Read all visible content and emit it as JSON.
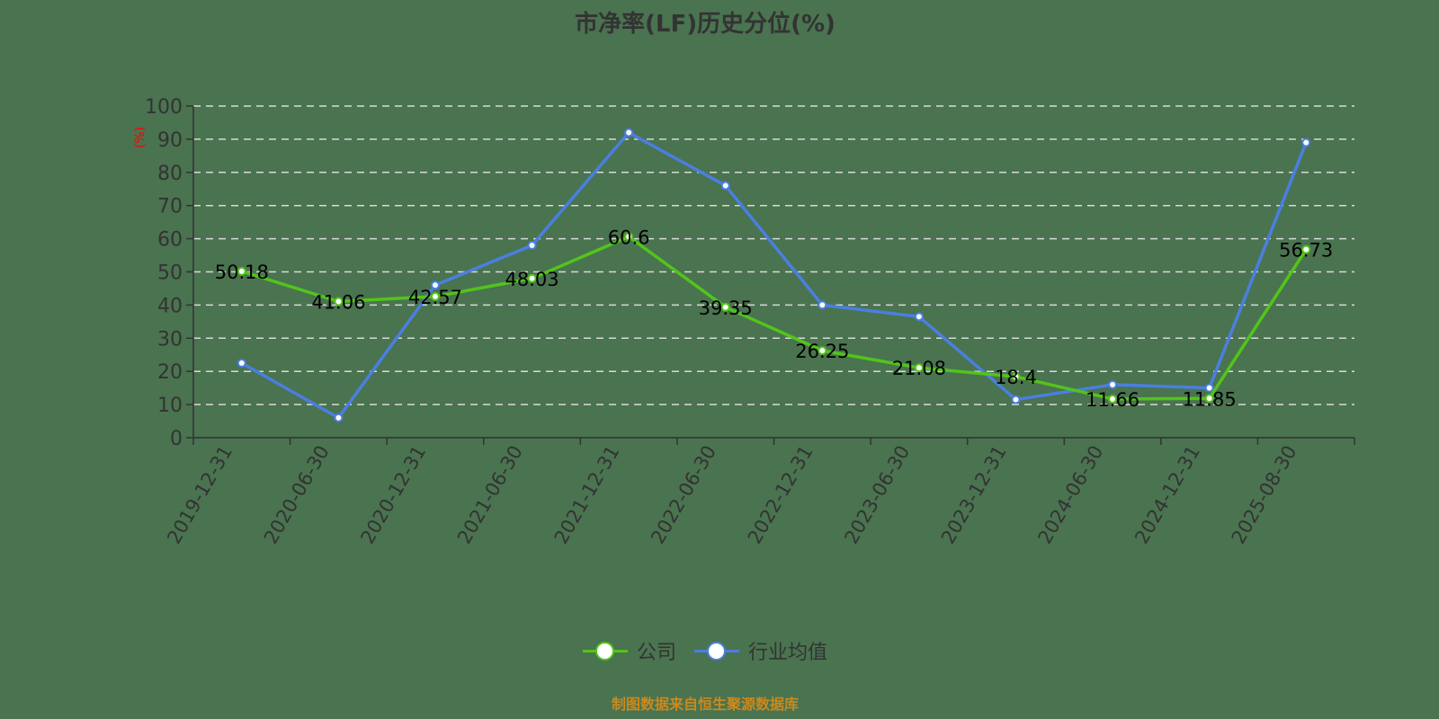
{
  "title": "市净率(LF)历史分位(%)",
  "footer": "制图数据来自恒生聚源数据库",
  "legend": {
    "company": "公司",
    "industry": "行业均值"
  },
  "colors": {
    "background": "#4a7350",
    "company": "#52c41a",
    "industry": "#4a7fe0",
    "axis": "#333333",
    "grid": "#d9d9d9",
    "ylabel": "#ff0000",
    "footer": "#c98a1e"
  },
  "chart_data": {
    "type": "line",
    "title": "市净率(LF)历史分位(%)",
    "xlabel": "",
    "ylabel": "(%)",
    "ylim": [
      0,
      100
    ],
    "yticks": [
      0,
      10,
      20,
      30,
      40,
      50,
      60,
      70,
      80,
      90,
      100
    ],
    "grid": true,
    "legend_position": "bottom",
    "categories": [
      "2019-12-31",
      "2020-06-30",
      "2020-12-31",
      "2021-06-30",
      "2021-12-31",
      "2022-06-30",
      "2022-12-31",
      "2023-06-30",
      "2023-12-31",
      "2024-06-30",
      "2024-12-31",
      "2025-08-30"
    ],
    "series": [
      {
        "name": "公司",
        "values": [
          50.18,
          41.06,
          42.57,
          48.03,
          60.6,
          39.35,
          26.25,
          21.08,
          18.4,
          11.66,
          11.85,
          56.73
        ],
        "labels": [
          "50.18",
          "41.06",
          "42.57",
          "48.03",
          "60.6",
          "39.35",
          "26.25",
          "21.08",
          "18.4",
          "11.66",
          "11.85",
          "56.73"
        ]
      },
      {
        "name": "行业均值",
        "values": [
          22.5,
          6.0,
          46.0,
          58.0,
          92.0,
          76.0,
          40.0,
          36.5,
          11.5,
          16.0,
          15.0,
          89.0
        ]
      }
    ]
  }
}
